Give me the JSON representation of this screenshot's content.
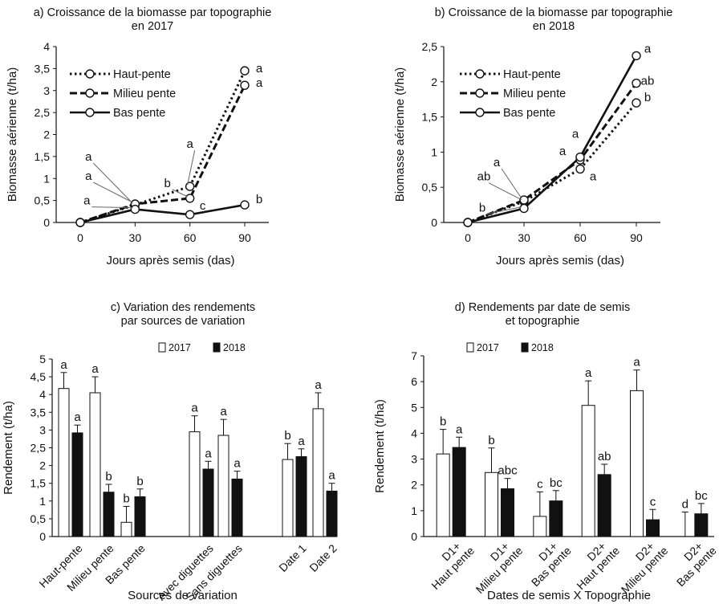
{
  "chart_data": [
    {
      "id": "a",
      "type": "line",
      "title": "a) Croissance de la biomasse par topographie en 2017",
      "title_lines": [
        "a) Croissance de la biomasse par topographie",
        "en 2017"
      ],
      "xlabel": "Jours après semis (das)",
      "ylabel": "Biomasse aérienne (t/ha)",
      "x": [
        0,
        30,
        60,
        90
      ],
      "ylim": [
        0,
        4
      ],
      "yticks": [
        "0",
        "0,5",
        "1",
        "1,5",
        "2",
        "2,5",
        "3",
        "3,5",
        "4"
      ],
      "legend_position": "top-left",
      "series": [
        {
          "name": "Haut-pente",
          "style": "dotted",
          "values": [
            0,
            0.4,
            0.82,
            3.45
          ],
          "letters": [
            "",
            "a",
            "a",
            "a"
          ]
        },
        {
          "name": "Milieu pente",
          "style": "dashed",
          "values": [
            0,
            0.42,
            0.55,
            3.12
          ],
          "letters": [
            "",
            "a",
            "b",
            "a"
          ]
        },
        {
          "name": "Bas pente",
          "style": "solid",
          "values": [
            0,
            0.3,
            0.18,
            0.4
          ],
          "letters": [
            "",
            "a",
            "c",
            "b"
          ]
        }
      ]
    },
    {
      "id": "b",
      "type": "line",
      "title": "b) Croissance de la biomasse par topographie en 2018",
      "title_lines": [
        "b) Croissance de la biomasse par topographie",
        "en 2018"
      ],
      "xlabel": "Jours après semis (das)",
      "ylabel": "Biomasse aérienne (t/ha)",
      "x": [
        0,
        30,
        60,
        90
      ],
      "ylim": [
        0,
        2.5
      ],
      "yticks": [
        "0",
        "0,5",
        "1",
        "1,5",
        "2",
        "2,5"
      ],
      "legend_position": "top-left",
      "series": [
        {
          "name": "Haut-pente",
          "style": "dotted",
          "values": [
            0,
            0.3,
            0.76,
            1.7
          ],
          "letters": [
            "",
            "ab",
            "a",
            "b"
          ]
        },
        {
          "name": "Milieu pente",
          "style": "dashed",
          "values": [
            0,
            0.32,
            0.89,
            1.98
          ],
          "letters": [
            "",
            "a",
            "a",
            "ab"
          ]
        },
        {
          "name": "Bas pente",
          "style": "solid",
          "values": [
            0,
            0.2,
            0.93,
            2.37
          ],
          "letters": [
            "",
            "b",
            "a",
            "a"
          ]
        }
      ]
    },
    {
      "id": "c",
      "type": "bar",
      "title": "c) Variation des rendements par sources de variation",
      "title_lines": [
        "c) Variation des rendements",
        "par sources de variation"
      ],
      "xlabel": "Sources de variation",
      "ylabel": "Rendement (t/ha)",
      "ylim": [
        0,
        5
      ],
      "yticks": [
        "0",
        "0,5",
        "1",
        "1,5",
        "2",
        "2,5",
        "3",
        "3,5",
        "4",
        "4,5",
        "5"
      ],
      "categories": [
        "Haut-pente",
        "Milieu pente",
        "Bas pente",
        "Avec diguettes",
        "Sans diguettes",
        "Date 1",
        "Date 2"
      ],
      "groups": [
        3,
        2,
        2
      ],
      "legend_position": "top",
      "series": [
        {
          "name": "2017",
          "color": "#ffffff",
          "values": [
            4.17,
            4.05,
            0.4,
            2.95,
            2.85,
            2.17,
            3.6
          ],
          "errors": [
            0.45,
            0.45,
            0.45,
            0.45,
            0.45,
            0.45,
            0.45
          ],
          "letters": [
            "a",
            "a",
            "b",
            "a",
            "a",
            "b",
            "a"
          ]
        },
        {
          "name": "2018",
          "color": "#111111",
          "values": [
            2.92,
            1.25,
            1.12,
            1.9,
            1.62,
            2.25,
            1.28
          ],
          "errors": [
            0.22,
            0.22,
            0.22,
            0.22,
            0.22,
            0.22,
            0.22
          ],
          "letters": [
            "a",
            "b",
            "b",
            "a",
            "a",
            "a",
            "a"
          ]
        }
      ]
    },
    {
      "id": "d",
      "type": "bar",
      "title": "d) Rendements par date de semis et topographie",
      "title_lines": [
        "d) Rendements par date de semis",
        "et topographie"
      ],
      "xlabel": "Dates de semis X Topographie",
      "ylabel": "Rendement (t/ha)",
      "ylim": [
        0,
        7
      ],
      "yticks": [
        "0",
        "1",
        "2",
        "3",
        "4",
        "5",
        "6",
        "7"
      ],
      "categories": [
        [
          "D1+",
          "Haut pente"
        ],
        [
          "D1+",
          "Milieu pente"
        ],
        [
          "D1+",
          "Bas pente"
        ],
        [
          "D2+",
          "Haut pente"
        ],
        [
          "D2+",
          "Milieu pente"
        ],
        [
          "D2+",
          "Bas pente"
        ]
      ],
      "legend_position": "top-left",
      "series": [
        {
          "name": "2017",
          "color": "#ffffff",
          "values": [
            3.2,
            2.48,
            0.78,
            5.08,
            5.65,
            0
          ],
          "errors": [
            0.95,
            0.95,
            0.95,
            0.95,
            0.8,
            0.95
          ],
          "letters": [
            "b",
            "b",
            "c",
            "a",
            "a",
            "d"
          ]
        },
        {
          "name": "2018",
          "color": "#111111",
          "values": [
            3.45,
            1.85,
            1.38,
            2.4,
            0.65,
            0.88
          ],
          "errors": [
            0.4,
            0.4,
            0.4,
            0.4,
            0.4,
            0.4
          ],
          "letters": [
            "a",
            "abc",
            "bc",
            "ab",
            "c",
            "bc"
          ]
        }
      ]
    }
  ]
}
